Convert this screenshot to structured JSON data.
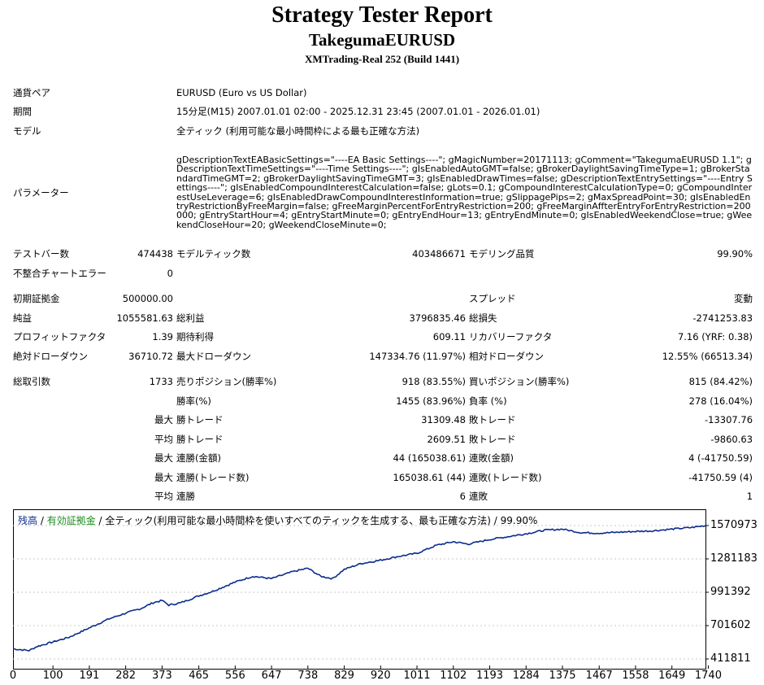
{
  "header": {
    "title": "Strategy Tester Report",
    "expert": "TakegumaEURUSD",
    "server": "XMTrading-Real 252 (Build 1441)"
  },
  "info": {
    "symbol_label": "通貨ペア",
    "symbol_value": "EURUSD (Euro vs US Dollar)",
    "period_label": "期間",
    "period_value": "15分足(M15) 2007.01.01 02:00 - 2025.12.31 23:45 (2007.01.01 - 2026.01.01)",
    "model_label": "モデル",
    "model_value": "全ティック (利用可能な最小時間枠による最も正確な方法)",
    "params_label": "パラメーター",
    "params_value": "gDescriptionTextEABasicSettings=\"----EA Basic Settings----\"; gMagicNumber=20171113; gComment=\"TakegumaEURUSD 1.1\"; gDescriptionTextTimeSettings=\"----Time Settings----\"; gIsEnabledAutoGMT=false; gBrokerDaylightSavingTimeType=1; gBrokerStandardTimeGMT=2; gBrokerDaylightSavingTimeGMT=3; gIsEnabledDrawTimes=false; gDescriptionTextEntrySettings=\"----Entry Settings----\"; gIsEnabledCompoundInterestCalculation=false; gLots=0.1; gCompoundInterestCalculationType=0; gCompoundInterestUseLeverage=6; gIsEnabledDrawCompoundInterestInformation=true; gSlippagePips=2; gMaxSpreadPoint=30; gIsEnabledEntryRestrictionByFreeMargin=false; gFreeMarginPercentForEntryRestriction=200; gFreeMarginAffterEntryForEntryRestriction=200000; gEntryStartHour=4; gEntryStartMinute=0; gEntryEndHour=13; gEntryEndMinute=0; gIsEnabledWeekendClose=true; gWeekendCloseHour=20; gWeekendCloseMinute=0;"
  },
  "stats": {
    "bars_label": "テストバー数",
    "bars_value": "474438",
    "ticks_label": "モデルティック数",
    "ticks_value": "403486671",
    "quality_label": "モデリング品質",
    "quality_value": "99.90%",
    "mismatch_label": "不整合チャートエラー",
    "mismatch_value": "0",
    "deposit_label": "初期証拠金",
    "deposit_value": "500000.00",
    "spread_label": "スプレッド",
    "spread_value": "変動",
    "netprofit_label": "純益",
    "netprofit_value": "1055581.63",
    "grossprofit_label": "総利益",
    "grossprofit_value": "3796835.46",
    "grossloss_label": "総損失",
    "grossloss_value": "-2741253.83",
    "pf_label": "プロフィットファクタ",
    "pf_value": "1.39",
    "expected_label": "期待利得",
    "expected_value": "609.11",
    "recovery_label": "リカバリーファクタ",
    "recovery_value": "7.16 (YRF: 0.38)",
    "absdd_label": "絶対ドローダウン",
    "absdd_value": "36710.72",
    "maxdd_label": "最大ドローダウン",
    "maxdd_value": "147334.76 (11.97%)",
    "reldd_label": "相対ドローダウン",
    "reldd_value": "12.55% (66513.34)",
    "trades_label": "総取引数",
    "trades_value": "1733",
    "short_label": "売りポジション(勝率%)",
    "short_value": "918 (83.55%)",
    "long_label": "買いポジション(勝率%)",
    "long_value": "815 (84.42%)",
    "winrate_label": "勝率(%)",
    "winrate_value": "1455 (83.96%)",
    "lossrate_label": "負率 (%)",
    "lossrate_value": "278 (16.04%)",
    "max_label": "最大",
    "avg_label": "平均",
    "wintrade_label": "勝トレード",
    "largest_win": "31309.48",
    "average_win": "2609.51",
    "losstrade_label": "敗トレード",
    "largest_loss": "-13307.76",
    "average_loss": "-9860.63",
    "consec_win_money_label": "連勝(金額)",
    "consec_win_money_value": "44 (165038.61)",
    "consec_loss_money_label": "連敗(金額)",
    "consec_loss_money_value": "4 (-41750.59)",
    "consec_win_count_label": "連勝(トレード数)",
    "consec_win_count_value": "165038.61 (44)",
    "consec_loss_count_label": "連敗(トレード数)",
    "consec_loss_count_value": "-41750.59 (4)",
    "avg_consec_win_label": "連勝",
    "avg_consec_win_value": "6",
    "avg_consec_loss_label": "連敗",
    "avg_consec_loss_value": "1"
  },
  "chart": {
    "legend_balance": "残高",
    "legend_sep1": " / ",
    "legend_equity": "有効証拠金",
    "legend_sep2": " / ",
    "legend_model": "全ティック(利用可能な最小時間枠を使いすべてのティックを生成する、最も正確な方法) / 99.90%",
    "colors": {
      "balance": "#0a2c8c",
      "equity": "#1b8a1b",
      "grid": "#c8c8c8"
    }
  },
  "chart_data": {
    "type": "line",
    "yticks": [
      "1570973",
      "1281183",
      "991392",
      "701602",
      "411811"
    ],
    "ytick_values": [
      1570973,
      1281183,
      991392,
      701602,
      411811
    ],
    "xticks": [
      "0",
      "100",
      "191",
      "282",
      "373",
      "465",
      "556",
      "647",
      "738",
      "829",
      "920",
      "1011",
      "1102",
      "1193",
      "1284",
      "1375",
      "1467",
      "1558",
      "1649",
      "1740"
    ],
    "xtick_values": [
      0,
      100,
      191,
      282,
      373,
      465,
      556,
      647,
      738,
      829,
      920,
      1011,
      1102,
      1193,
      1284,
      1375,
      1467,
      1558,
      1649,
      1740
    ],
    "xlim": [
      0,
      1733
    ],
    "ylim": [
      411811,
      1570973
    ],
    "series": [
      {
        "name": "残高",
        "x": [
          0,
          40,
          60,
          100,
          140,
          190,
          240,
          282,
          320,
          350,
          373,
          390,
          420,
          465,
          500,
          556,
          600,
          647,
          700,
          738,
          770,
          800,
          829,
          870,
          920,
          960,
          1011,
          1060,
          1102,
          1140,
          1193,
          1230,
          1284,
          1330,
          1375,
          1420,
          1467,
          1510,
          1558,
          1600,
          1649,
          1700,
          1733
        ],
        "y": [
          500000,
          485000,
          520000,
          560000,
          600000,
          680000,
          760000,
          810000,
          850000,
          900000,
          920000,
          880000,
          900000,
          960000,
          1000000,
          1080000,
          1130000,
          1110000,
          1170000,
          1200000,
          1130000,
          1110000,
          1190000,
          1240000,
          1270000,
          1300000,
          1330000,
          1400000,
          1430000,
          1410000,
          1450000,
          1470000,
          1500000,
          1530000,
          1540000,
          1510000,
          1505000,
          1512000,
          1520000,
          1525000,
          1540000,
          1555000,
          1570000
        ]
      }
    ]
  }
}
